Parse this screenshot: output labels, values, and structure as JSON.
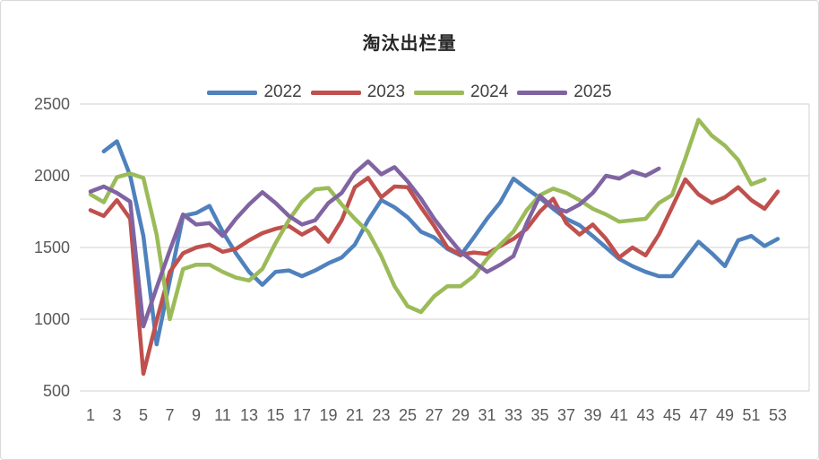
{
  "chart_data": {
    "type": "line",
    "title": "淘汰出栏量",
    "legend_position": "top",
    "grid": true,
    "x_axis": {
      "tick_labels": [
        1,
        3,
        5,
        7,
        9,
        11,
        13,
        15,
        17,
        19,
        21,
        23,
        25,
        27,
        29,
        31,
        33,
        35,
        37,
        39,
        41,
        43,
        45,
        47,
        49,
        51,
        53
      ],
      "range": [
        1,
        53
      ]
    },
    "y_axis": {
      "tick_labels": [
        500,
        1000,
        1500,
        2000,
        2500
      ],
      "range": [
        500,
        2500
      ]
    },
    "x": [
      1,
      2,
      3,
      4,
      5,
      6,
      7,
      8,
      9,
      10,
      11,
      12,
      13,
      14,
      15,
      16,
      17,
      18,
      19,
      20,
      21,
      22,
      23,
      24,
      25,
      26,
      27,
      28,
      29,
      30,
      31,
      32,
      33,
      34,
      35,
      36,
      37,
      38,
      39,
      40,
      41,
      42,
      43,
      44,
      45,
      46,
      47,
      48,
      49,
      50,
      51,
      52,
      53
    ],
    "series": [
      {
        "name": "2022",
        "color": "#4F81BD",
        "values": [
          null,
          2170,
          2240,
          2000,
          1580,
          825,
          1270,
          1720,
          1740,
          1790,
          1610,
          1460,
          1330,
          1240,
          1330,
          1340,
          1300,
          1340,
          1390,
          1430,
          1520,
          1690,
          1830,
          1780,
          1710,
          1610,
          1570,
          1490,
          1445,
          1570,
          1700,
          1815,
          1980,
          1910,
          1845,
          1770,
          1700,
          1655,
          1580,
          1500,
          1420,
          1370,
          1330,
          1300,
          1300,
          1420,
          1540,
          1460,
          1370,
          1550,
          1580,
          1510,
          1560
        ]
      },
      {
        "name": "2023",
        "color": "#C0504D",
        "values": [
          1760,
          1720,
          1830,
          1700,
          620,
          990,
          1330,
          1460,
          1500,
          1520,
          1470,
          1490,
          1550,
          1600,
          1630,
          1650,
          1590,
          1640,
          1540,
          1690,
          1920,
          1985,
          1850,
          1925,
          1920,
          1780,
          1650,
          1500,
          1450,
          1465,
          1455,
          1510,
          1560,
          1630,
          1750,
          1840,
          1670,
          1590,
          1660,
          1560,
          1430,
          1500,
          1445,
          1590,
          1780,
          1975,
          1870,
          1810,
          1850,
          1920,
          1830,
          1770,
          1890
        ]
      },
      {
        "name": "2024",
        "color": "#9BBB59",
        "values": [
          1870,
          1815,
          1990,
          2015,
          1985,
          1590,
          1000,
          1350,
          1380,
          1380,
          1330,
          1290,
          1270,
          1350,
          1530,
          1690,
          1820,
          1905,
          1915,
          1800,
          1700,
          1610,
          1440,
          1230,
          1090,
          1050,
          1160,
          1230,
          1230,
          1300,
          1420,
          1520,
          1610,
          1760,
          1865,
          1910,
          1880,
          1830,
          1770,
          1730,
          1680,
          1690,
          1700,
          1810,
          1865,
          2120,
          2390,
          2280,
          2210,
          2110,
          1940,
          1975,
          null
        ]
      },
      {
        "name": "2025",
        "color": "#8064A2",
        "values": [
          1890,
          1925,
          1880,
          1820,
          950,
          1220,
          1480,
          1730,
          1660,
          1670,
          1580,
          1700,
          1800,
          1885,
          1810,
          1720,
          1660,
          1690,
          1810,
          1880,
          2020,
          2100,
          2010,
          2060,
          1960,
          1840,
          1700,
          1580,
          1470,
          1400,
          1330,
          1380,
          1440,
          1670,
          1860,
          1780,
          1750,
          1800,
          1880,
          2000,
          1980,
          2030,
          2000,
          2050,
          null,
          null,
          null,
          null,
          null,
          null,
          null,
          null,
          null
        ]
      }
    ]
  },
  "colors": {
    "grid": "#D9D9D9",
    "axis_text": "#595959",
    "title_text": "#262626",
    "background": "#FFFFFF"
  }
}
